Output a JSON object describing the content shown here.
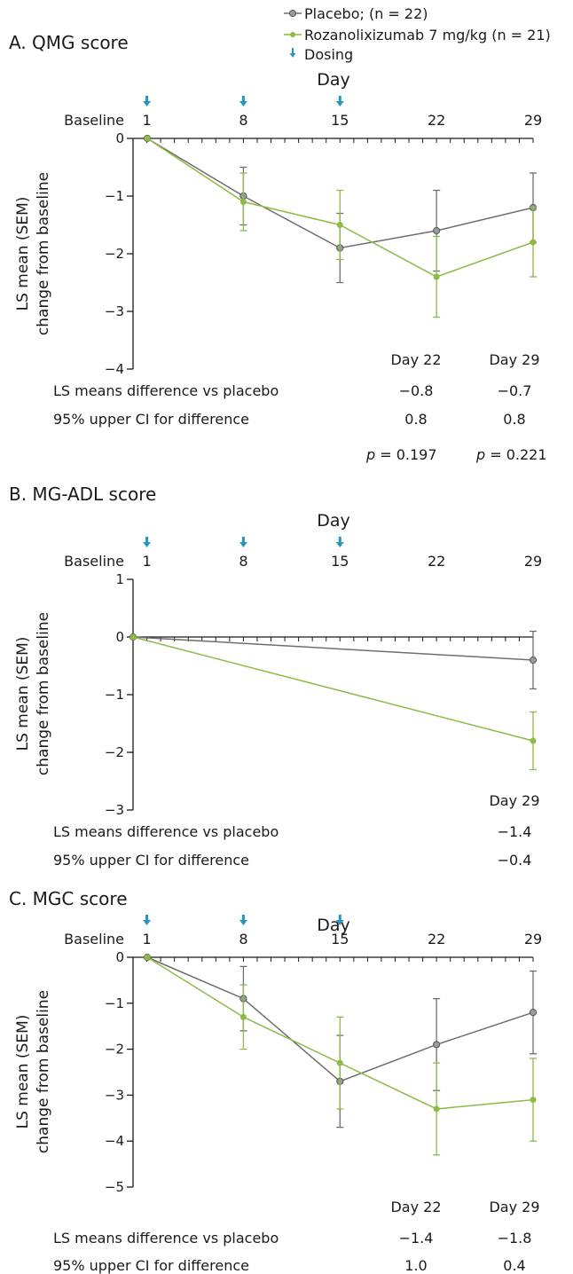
{
  "legend": {
    "placebo": "Placebo; (n = 22)",
    "roza": "Rozanolixizumab 7 mg/kg (n = 21)",
    "dosing": "Dosing"
  },
  "colors": {
    "placebo": "#6e6e6e",
    "roza": "#8dbb45",
    "dosing": "#2596be",
    "axis": "#1a1a1a"
  },
  "common": {
    "x_title": "Day",
    "ylabel_line1": "LS mean (SEM)",
    "ylabel_line2": "change from baseline",
    "baseline_label": "Baseline",
    "row1_label": "LS means difference vs placebo",
    "row2_label": "95% upper CI for difference"
  },
  "chart_data": [
    {
      "type": "line",
      "title": "A. QMG score",
      "xlabel": "Day",
      "ylabel": "LS mean (SEM) change from baseline",
      "x_ticks": [
        "1",
        "8",
        "15",
        "22",
        "29"
      ],
      "xlim": [
        0,
        29
      ],
      "ylim": [
        -4,
        0
      ],
      "y_ticks": [
        "0",
        "−1",
        "−2",
        "−3",
        "−4"
      ],
      "dosing_days": [
        1,
        8,
        15
      ],
      "series": [
        {
          "name": "Placebo; (n = 22)",
          "x": [
            0,
            8,
            15,
            22,
            29
          ],
          "y": [
            0,
            -1.0,
            -1.9,
            -1.6,
            -1.2
          ],
          "err": [
            0,
            0.5,
            0.6,
            0.7,
            0.6
          ]
        },
        {
          "name": "Rozanolixizumab 7 mg/kg (n = 21)",
          "x": [
            0,
            8,
            15,
            22,
            29
          ],
          "y": [
            0,
            -1.1,
            -1.5,
            -2.4,
            -1.8
          ],
          "err": [
            0,
            0.5,
            0.6,
            0.7,
            0.6
          ]
        }
      ],
      "table": {
        "columns": [
          "Day 22",
          "Day 29"
        ],
        "diff": [
          "−0.8",
          "−0.7"
        ],
        "ci": [
          "0.8",
          "0.8"
        ],
        "p": [
          "0.197",
          "0.221"
        ]
      }
    },
    {
      "type": "line",
      "title": "B. MG-ADL score",
      "xlabel": "Day",
      "ylabel": "LS mean (SEM) change from baseline",
      "x_ticks": [
        "1",
        "8",
        "15",
        "22",
        "29"
      ],
      "xlim": [
        0,
        29
      ],
      "ylim": [
        -3,
        1
      ],
      "y_ticks": [
        "1",
        "0",
        "−1",
        "−2",
        "−3"
      ],
      "dosing_days": [
        1,
        8,
        15
      ],
      "series": [
        {
          "name": "Placebo; (n = 22)",
          "x": [
            0,
            29
          ],
          "y": [
            0,
            -0.4
          ],
          "err": [
            0,
            0.5
          ]
        },
        {
          "name": "Rozanolixizumab 7 mg/kg (n = 21)",
          "x": [
            0,
            29
          ],
          "y": [
            0,
            -1.8
          ],
          "err": [
            0,
            0.5
          ]
        }
      ],
      "table": {
        "columns": [
          "Day 29"
        ],
        "diff": [
          "−1.4"
        ],
        "ci": [
          "−0.4"
        ]
      }
    },
    {
      "type": "line",
      "title": "C. MGC score",
      "xlabel": "Day",
      "ylabel": "LS mean (SEM) change from baseline",
      "x_ticks": [
        "1",
        "8",
        "15",
        "22",
        "29"
      ],
      "xlim": [
        0,
        29
      ],
      "ylim": [
        -5,
        0
      ],
      "y_ticks": [
        "0",
        "−1",
        "−2",
        "−3",
        "−4",
        "−5"
      ],
      "dosing_days": [
        1,
        8,
        15
      ],
      "series": [
        {
          "name": "Placebo; (n = 22)",
          "x": [
            0,
            8,
            15,
            22,
            29
          ],
          "y": [
            0,
            -0.9,
            -2.7,
            -1.9,
            -1.2
          ],
          "err": [
            0,
            0.7,
            1.0,
            1.0,
            0.9
          ]
        },
        {
          "name": "Rozanolixizumab 7 mg/kg (n = 21)",
          "x": [
            0,
            8,
            15,
            22,
            29
          ],
          "y": [
            0,
            -1.3,
            -2.3,
            -3.3,
            -3.1
          ],
          "err": [
            0,
            0.7,
            1.0,
            1.0,
            0.9
          ]
        }
      ],
      "table": {
        "columns": [
          "Day 22",
          "Day 29"
        ],
        "diff": [
          "−1.4",
          "−1.8"
        ],
        "ci": [
          "1.0",
          "0.4"
        ]
      }
    }
  ]
}
